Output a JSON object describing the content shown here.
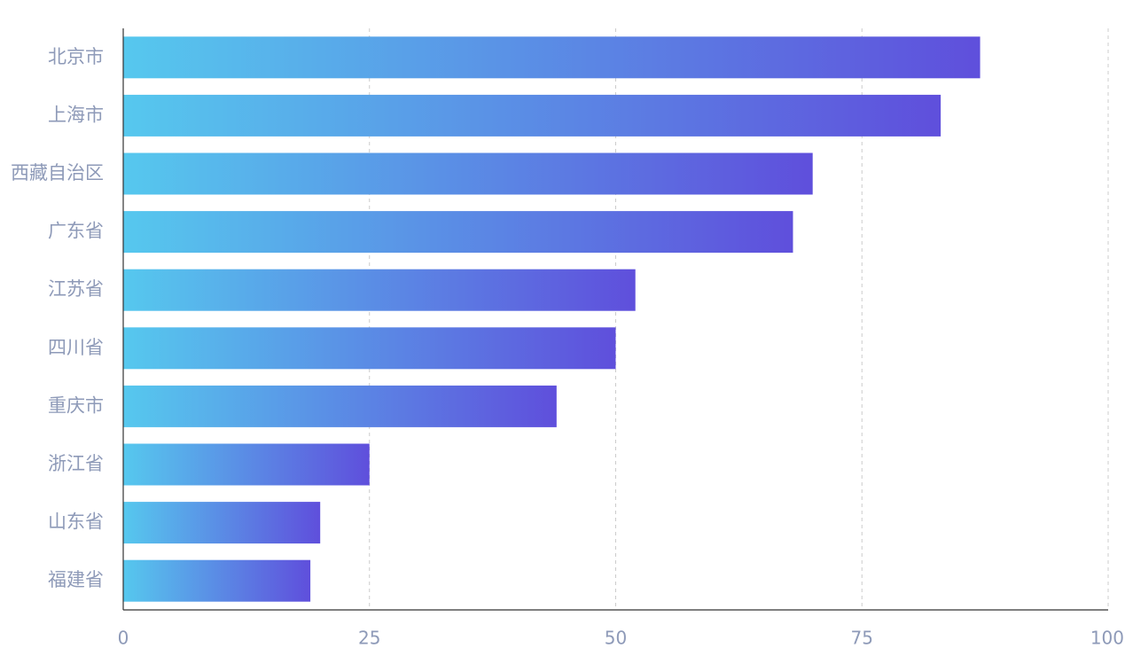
{
  "chart_data": {
    "type": "bar",
    "orientation": "horizontal",
    "title": "",
    "xlabel": "",
    "ylabel": "",
    "categories": [
      "北京市",
      "上海市",
      "西藏自治区",
      "广东省",
      "江苏省",
      "四川省",
      "重庆市",
      "浙江省",
      "山东省",
      "福建省"
    ],
    "values": [
      87,
      83,
      70,
      68,
      52,
      50,
      44,
      25,
      20,
      19
    ],
    "xlim": [
      0,
      100
    ],
    "xticks": [
      0,
      25,
      50,
      75,
      100
    ],
    "grid": "vertical dashed",
    "legend": "none",
    "colors": {
      "bar_gradient_start": "#56c8ee",
      "bar_gradient_end": "#5f4fdc",
      "axis": "#333333",
      "grid": "#cccccc",
      "tick_label": "#8e9ab8"
    }
  }
}
